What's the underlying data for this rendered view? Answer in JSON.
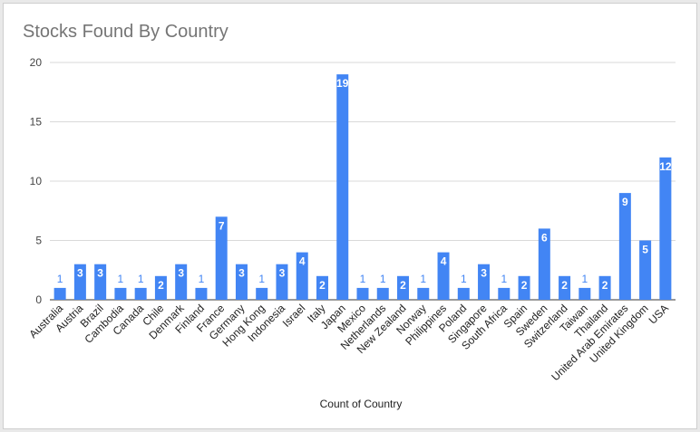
{
  "chart_data": {
    "type": "bar",
    "title": "Stocks Found By Country",
    "xlabel": "Count of Country",
    "ylabel": "",
    "ylim": [
      0,
      20
    ],
    "yticks": [
      0,
      5,
      10,
      15,
      20
    ],
    "grid": true,
    "legend": "none",
    "bar_color": "#4285f4",
    "categories": [
      "Australia",
      "Austria",
      "Brazil",
      "Cambodia",
      "Canada",
      "Chile",
      "Denmark",
      "Finland",
      "France",
      "Germany",
      "Hong Kong",
      "Indonesia",
      "Israel",
      "Italy",
      "Japan",
      "Mexico",
      "Netherlands",
      "New Zealand",
      "Norway",
      "Philippines",
      "Poland",
      "Singapore",
      "South Africa",
      "Spain",
      "Sweden",
      "Switzerland",
      "Taiwan",
      "Thailand",
      "United Arab Emirates",
      "United Kingdom",
      "USA"
    ],
    "values": [
      1,
      3,
      3,
      1,
      1,
      2,
      3,
      1,
      7,
      3,
      1,
      3,
      4,
      2,
      19,
      1,
      1,
      2,
      1,
      4,
      1,
      3,
      1,
      2,
      6,
      2,
      1,
      2,
      9,
      5,
      12
    ]
  }
}
